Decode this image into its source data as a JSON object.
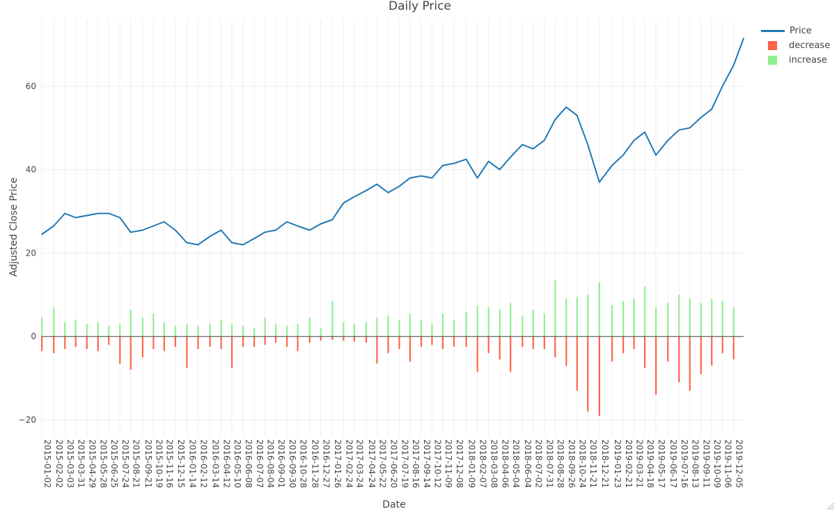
{
  "chart_data": {
    "type": "line",
    "title": "Daily Price",
    "xlabel": "Date",
    "ylabel": "Adjusted Close Price",
    "ylim": [
      -24,
      76
    ],
    "yticks": [
      -20,
      0,
      20,
      40,
      60
    ],
    "ytick_labels": [
      "−20",
      "0",
      "20",
      "40",
      "60"
    ],
    "grid": true,
    "legend_position": "top-right",
    "x_start": "2015-01-02",
    "x_end": "2019-12-31",
    "xticks": [
      "2015-01-02",
      "2015-02-02",
      "2015-03-03",
      "2015-03-31",
      "2015-04-29",
      "2015-05-28",
      "2015-06-25",
      "2015-07-24",
      "2015-08-21",
      "2015-09-21",
      "2015-10-19",
      "2015-11-16",
      "2015-12-15",
      "2016-01-14",
      "2016-02-12",
      "2016-03-14",
      "2016-04-12",
      "2016-05-10",
      "2016-06-08",
      "2016-07-07",
      "2016-08-04",
      "2016-09-01",
      "2016-09-30",
      "2016-10-28",
      "2016-11-28",
      "2016-12-27",
      "2017-01-26",
      "2017-02-24",
      "2017-03-24",
      "2017-04-24",
      "2017-05-22",
      "2017-06-20",
      "2017-07-19",
      "2017-08-16",
      "2017-09-14",
      "2017-10-12",
      "2017-11-09",
      "2017-12-08",
      "2018-01-09",
      "2018-02-07",
      "2018-03-08",
      "2018-04-06",
      "2018-05-04",
      "2018-06-04",
      "2018-07-02",
      "2018-07-31",
      "2018-08-28",
      "2018-09-26",
      "2018-10-24",
      "2018-11-21",
      "2018-12-21",
      "2019-01-23",
      "2019-02-21",
      "2019-03-21",
      "2019-04-18",
      "2019-05-17",
      "2019-06-17",
      "2019-07-16",
      "2019-08-13",
      "2019-09-11",
      "2019-10-09",
      "2019-11-06",
      "2019-12-05"
    ],
    "series": [
      {
        "name": "Price",
        "type": "line",
        "color": "#1f77b4",
        "x": [
          "2015-01-02",
          "2015-02-02",
          "2015-03-03",
          "2015-03-31",
          "2015-04-29",
          "2015-05-28",
          "2015-06-25",
          "2015-07-24",
          "2015-08-21",
          "2015-09-21",
          "2015-10-19",
          "2015-11-16",
          "2015-12-15",
          "2016-01-14",
          "2016-02-12",
          "2016-03-14",
          "2016-04-12",
          "2016-05-10",
          "2016-06-08",
          "2016-07-07",
          "2016-08-04",
          "2016-09-01",
          "2016-09-30",
          "2016-10-28",
          "2016-11-28",
          "2016-12-27",
          "2017-01-26",
          "2017-02-24",
          "2017-03-24",
          "2017-04-24",
          "2017-05-22",
          "2017-06-20",
          "2017-07-19",
          "2017-08-16",
          "2017-09-14",
          "2017-10-12",
          "2017-11-09",
          "2017-12-08",
          "2018-01-09",
          "2018-02-07",
          "2018-03-08",
          "2018-04-06",
          "2018-05-04",
          "2018-06-04",
          "2018-07-02",
          "2018-07-31",
          "2018-08-28",
          "2018-09-26",
          "2018-10-24",
          "2018-11-21",
          "2018-12-21",
          "2019-01-23",
          "2019-02-21",
          "2019-03-21",
          "2019-04-18",
          "2019-05-17",
          "2019-06-17",
          "2019-07-16",
          "2019-08-13",
          "2019-09-11",
          "2019-10-09",
          "2019-11-06",
          "2019-12-05",
          "2019-12-31"
        ],
        "y": [
          24.5,
          26.5,
          29.5,
          28.5,
          29.0,
          29.5,
          29.5,
          28.5,
          25.0,
          25.5,
          26.5,
          27.5,
          25.5,
          22.5,
          22.0,
          24.0,
          25.5,
          22.5,
          22.0,
          23.5,
          25.0,
          25.5,
          27.5,
          26.5,
          25.5,
          27.0,
          28.0,
          32.0,
          33.5,
          35.0,
          36.5,
          34.5,
          36.0,
          38.0,
          38.5,
          38.0,
          41.0,
          41.5,
          42.5,
          38.0,
          42.0,
          40.0,
          43.0,
          46.0,
          45.0,
          47.0,
          52.0,
          55.0,
          53.0,
          46.0,
          37.0,
          41.0,
          43.5,
          47.0,
          49.0,
          43.5,
          47.0,
          49.5,
          50.0,
          52.5,
          54.5,
          60.0,
          65.0,
          71.5
        ]
      },
      {
        "name": "decrease",
        "type": "bar",
        "color": "#ff6347",
        "x": [
          "2015-01-02",
          "2015-02-02",
          "2015-03-03",
          "2015-03-31",
          "2015-04-29",
          "2015-05-28",
          "2015-06-25",
          "2015-07-24",
          "2015-08-21",
          "2015-09-21",
          "2015-10-19",
          "2015-11-16",
          "2015-12-15",
          "2016-01-14",
          "2016-02-12",
          "2016-03-14",
          "2016-04-12",
          "2016-05-10",
          "2016-06-08",
          "2016-07-07",
          "2016-08-04",
          "2016-09-01",
          "2016-09-30",
          "2016-10-28",
          "2016-11-28",
          "2016-12-27",
          "2017-01-26",
          "2017-02-24",
          "2017-03-24",
          "2017-04-24",
          "2017-05-22",
          "2017-06-20",
          "2017-07-19",
          "2017-08-16",
          "2017-09-14",
          "2017-10-12",
          "2017-11-09",
          "2017-12-08",
          "2018-01-09",
          "2018-02-07",
          "2018-03-08",
          "2018-04-06",
          "2018-05-04",
          "2018-06-04",
          "2018-07-02",
          "2018-07-31",
          "2018-08-28",
          "2018-09-26",
          "2018-10-24",
          "2018-11-21",
          "2018-12-21",
          "2019-01-23",
          "2019-02-21",
          "2019-03-21",
          "2019-04-18",
          "2019-05-17",
          "2019-06-17",
          "2019-07-16",
          "2019-08-13",
          "2019-09-11",
          "2019-10-09",
          "2019-11-06",
          "2019-12-05"
        ],
        "y": [
          -3.5,
          -4.0,
          -3.0,
          -2.5,
          -3.0,
          -3.5,
          -2.0,
          -6.5,
          -8.0,
          -5.0,
          -3.0,
          -3.5,
          -2.5,
          -7.5,
          -3.0,
          -2.5,
          -3.0,
          -7.5,
          -2.5,
          -2.5,
          -2.0,
          -1.5,
          -2.5,
          -3.5,
          -1.5,
          -1.0,
          -0.8,
          -1.0,
          -1.2,
          -1.5,
          -6.5,
          -4.0,
          -3.0,
          -6.0,
          -2.5,
          -2.0,
          -3.0,
          -2.5,
          -2.5,
          -8.5,
          -4.0,
          -5.5,
          -8.5,
          -2.5,
          -3.0,
          -3.0,
          -5.0,
          -7.0,
          -13.0,
          -18.0,
          -19.0,
          -6.0,
          -4.0,
          -3.0,
          -7.5,
          -14.0,
          -6.0,
          -11.0,
          -13.0,
          -9.0,
          -7.0,
          -4.0,
          -5.5
        ]
      },
      {
        "name": "increase",
        "type": "bar",
        "color": "#90ee90",
        "x": [
          "2015-01-02",
          "2015-02-02",
          "2015-03-03",
          "2015-03-31",
          "2015-04-29",
          "2015-05-28",
          "2015-06-25",
          "2015-07-24",
          "2015-08-21",
          "2015-09-21",
          "2015-10-19",
          "2015-11-16",
          "2015-12-15",
          "2016-01-14",
          "2016-02-12",
          "2016-03-14",
          "2016-04-12",
          "2016-05-10",
          "2016-06-08",
          "2016-07-07",
          "2016-08-04",
          "2016-09-01",
          "2016-09-30",
          "2016-10-28",
          "2016-11-28",
          "2016-12-27",
          "2017-01-26",
          "2017-02-24",
          "2017-03-24",
          "2017-04-24",
          "2017-05-22",
          "2017-06-20",
          "2017-07-19",
          "2017-08-16",
          "2017-09-14",
          "2017-10-12",
          "2017-11-09",
          "2017-12-08",
          "2018-01-09",
          "2018-02-07",
          "2018-03-08",
          "2018-04-06",
          "2018-05-04",
          "2018-06-04",
          "2018-07-02",
          "2018-07-31",
          "2018-08-28",
          "2018-09-26",
          "2018-10-24",
          "2018-11-21",
          "2018-12-21",
          "2019-01-23",
          "2019-02-21",
          "2019-03-21",
          "2019-04-18",
          "2019-05-17",
          "2019-06-17",
          "2019-07-16",
          "2019-08-13",
          "2019-09-11",
          "2019-10-09",
          "2019-11-06",
          "2019-12-05"
        ],
        "y": [
          4.5,
          7.0,
          3.5,
          4.0,
          3.0,
          3.5,
          2.5,
          3.0,
          6.5,
          4.5,
          5.5,
          3.5,
          2.5,
          3.0,
          2.5,
          3.0,
          4.0,
          3.0,
          2.5,
          2.0,
          4.5,
          3.0,
          2.5,
          3.0,
          4.5,
          2.0,
          8.5,
          3.5,
          3.0,
          3.5,
          4.5,
          5.0,
          4.0,
          5.5,
          4.0,
          3.0,
          5.5,
          4.0,
          6.0,
          7.5,
          7.0,
          6.5,
          8.0,
          5.0,
          6.5,
          5.5,
          13.5,
          9.0,
          9.5,
          10.0,
          13.0,
          7.5,
          8.5,
          9.0,
          12.0,
          7.0,
          8.0,
          10.0,
          9.0,
          8.0,
          9.0,
          8.5,
          7.0
        ]
      }
    ]
  }
}
